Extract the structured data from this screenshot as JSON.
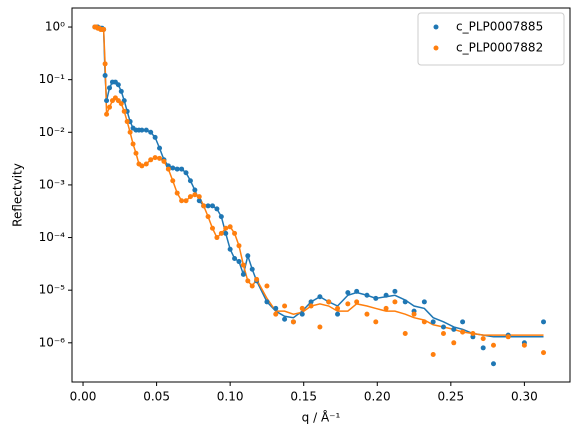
{
  "chart_data": {
    "type": "scatter",
    "ylabel": "Reflectvity",
    "xlabel": "q / Å⁻¹",
    "yscale": "log",
    "legend": "upper right",
    "x": [
      0.008,
      0.009,
      0.01,
      0.011,
      0.012,
      0.013,
      0.014,
      0.015,
      0.016,
      0.018,
      0.02,
      0.022,
      0.024,
      0.026,
      0.028,
      0.03,
      0.032,
      0.034,
      0.036,
      0.038,
      0.04,
      0.043,
      0.046,
      0.049,
      0.052,
      0.055,
      0.058,
      0.061,
      0.064,
      0.067,
      0.07,
      0.073,
      0.076,
      0.079,
      0.082,
      0.085,
      0.088,
      0.091,
      0.094,
      0.097,
      0.1,
      0.103,
      0.106,
      0.109,
      0.112,
      0.115,
      0.118,
      0.125,
      0.131,
      0.137,
      0.143,
      0.149,
      0.155,
      0.161,
      0.167,
      0.173,
      0.18,
      0.186,
      0.193,
      0.199,
      0.206,
      0.212,
      0.219,
      0.225,
      0.232,
      0.238,
      0.245,
      0.252,
      0.258,
      0.265,
      0.272,
      0.279,
      0.289,
      0.3,
      0.313
    ],
    "series": [
      {
        "name": "c_PLP0007885",
        "color": "#1f77b4",
        "values": [
          1,
          1,
          1,
          0.95,
          0.95,
          0.95,
          0.9,
          0.12,
          0.04,
          0.07,
          0.09,
          0.09,
          0.08,
          0.06,
          0.04,
          0.025,
          0.016,
          0.012,
          0.011,
          0.011,
          0.011,
          0.011,
          0.01,
          0.008,
          0.005,
          0.003,
          0.0023,
          0.0021,
          0.002,
          0.002,
          0.0017,
          0.0012,
          0.0008,
          0.0005,
          0.0004,
          0.0004,
          0.0004,
          0.00035,
          0.00025,
          0.00012,
          6e-05,
          4e-05,
          3.5e-05,
          2e-05,
          4.5e-05,
          2.5e-05,
          1.5e-05,
          6e-06,
          4.5e-06,
          2.8e-06,
          2.5e-06,
          3.5e-06,
          6e-06,
          7.5e-06,
          6e-06,
          3.5e-06,
          9e-06,
          9.5e-06,
          8e-06,
          7e-06,
          8e-06,
          9.5e-06,
          6e-06,
          4e-06,
          6e-06,
          2.5e-06,
          2e-06,
          1.8e-06,
          2.5e-06,
          1.3e-06,
          8e-07,
          4e-07,
          1.4e-06,
          1e-06,
          2.5e-06
        ],
        "fit": [
          1,
          1,
          1,
          0.95,
          0.95,
          0.95,
          0.9,
          0.12,
          0.04,
          0.07,
          0.09,
          0.09,
          0.08,
          0.06,
          0.04,
          0.025,
          0.016,
          0.012,
          0.011,
          0.011,
          0.011,
          0.011,
          0.01,
          0.008,
          0.005,
          0.003,
          0.0023,
          0.0021,
          0.002,
          0.002,
          0.0017,
          0.0012,
          0.0008,
          0.0005,
          0.0004,
          0.0004,
          0.0004,
          0.00035,
          0.00025,
          0.00012,
          6e-05,
          4e-05,
          3.5e-05,
          2e-05,
          4.5e-05,
          2.5e-05,
          1.5e-05,
          6e-06,
          4e-06,
          3.2e-06,
          3e-06,
          4e-06,
          6e-06,
          7.5e-06,
          6e-06,
          5e-06,
          8e-06,
          9e-06,
          8e-06,
          7e-06,
          7.5e-06,
          8e-06,
          6.5e-06,
          5e-06,
          4.5e-06,
          3e-06,
          2.5e-06,
          2e-06,
          1.8e-06,
          1.5e-06,
          1.4e-06,
          1.3e-06,
          1.3e-06,
          1.3e-06,
          1.3e-06
        ]
      },
      {
        "name": "c_PLP0007882",
        "color": "#ff7f0e",
        "values": [
          1,
          1,
          0.95,
          0.95,
          0.9,
          0.9,
          0.9,
          0.2,
          0.022,
          0.03,
          0.04,
          0.045,
          0.04,
          0.035,
          0.025,
          0.016,
          0.01,
          0.006,
          0.004,
          0.0025,
          0.0023,
          0.0025,
          0.003,
          0.0033,
          0.0032,
          0.0028,
          0.002,
          0.0012,
          0.0007,
          0.0005,
          0.0005,
          0.0006,
          0.00065,
          0.0006,
          0.0004,
          0.00025,
          0.00015,
          0.0001,
          0.00012,
          0.00015,
          0.00016,
          0.00012,
          7e-05,
          3e-05,
          1.5e-05,
          1.2e-05,
          1.6e-05,
          1.2e-05,
          3.5e-06,
          5e-06,
          2.5e-06,
          4.5e-06,
          5e-06,
          2e-06,
          6e-06,
          4.5e-06,
          5.5e-06,
          6e-06,
          3.5e-06,
          2.5e-06,
          4.5e-06,
          6e-06,
          1.5e-06,
          3.5e-06,
          2.5e-06,
          6e-07,
          1.5e-06,
          1e-06,
          1.6e-06,
          1.5e-06,
          1.2e-06,
          9e-07,
          1.3e-06,
          9e-07,
          6.5e-07
        ],
        "fit": [
          1,
          1,
          0.95,
          0.95,
          0.9,
          0.9,
          0.9,
          0.2,
          0.022,
          0.03,
          0.04,
          0.045,
          0.04,
          0.035,
          0.025,
          0.016,
          0.01,
          0.006,
          0.004,
          0.0025,
          0.0023,
          0.0025,
          0.003,
          0.0033,
          0.0032,
          0.0028,
          0.002,
          0.0012,
          0.0007,
          0.0005,
          0.0005,
          0.0006,
          0.00065,
          0.0006,
          0.0004,
          0.00025,
          0.00015,
          0.0001,
          0.00012,
          0.00015,
          0.00016,
          0.00012,
          7e-05,
          3e-05,
          1.5e-05,
          1.2e-05,
          1.6e-05,
          7e-06,
          4e-06,
          4e-06,
          3.5e-06,
          3.8e-06,
          5e-06,
          5.5e-06,
          5e-06,
          4e-06,
          4e-06,
          5.5e-06,
          5e-06,
          4.5e-06,
          4e-06,
          4e-06,
          3.5e-06,
          3e-06,
          2.7e-06,
          2.2e-06,
          2e-06,
          1.8e-06,
          1.6e-06,
          1.5e-06,
          1.4e-06,
          1.4e-06,
          1.4e-06,
          1.4e-06,
          1.4e-06
        ]
      }
    ],
    "xlim": [
      -0.0075,
      0.331
    ],
    "ylim": [
      1.8e-07,
      2.3
    ],
    "xticks": [
      {
        "value": 0,
        "label": "0.00"
      },
      0.05,
      {
        "value": 0.1,
        "label": "0.10"
      },
      0.15,
      {
        "value": 0.2,
        "label": "0.20"
      },
      0.25,
      {
        "value": 0.3,
        "label": "0.30"
      }
    ],
    "yticks": [
      {
        "value": 1,
        "label": "10⁰"
      },
      {
        "value": 0.1,
        "label": "10⁻¹"
      },
      {
        "value": 0.01,
        "label": "10⁻²"
      },
      {
        "value": 0.001,
        "label": "10⁻³"
      },
      {
        "value": 0.0001,
        "label": "10⁻⁴"
      },
      {
        "value": 1e-05,
        "label": "10⁻⁵"
      },
      {
        "value": 1e-06,
        "label": "10⁻⁶"
      }
    ]
  }
}
